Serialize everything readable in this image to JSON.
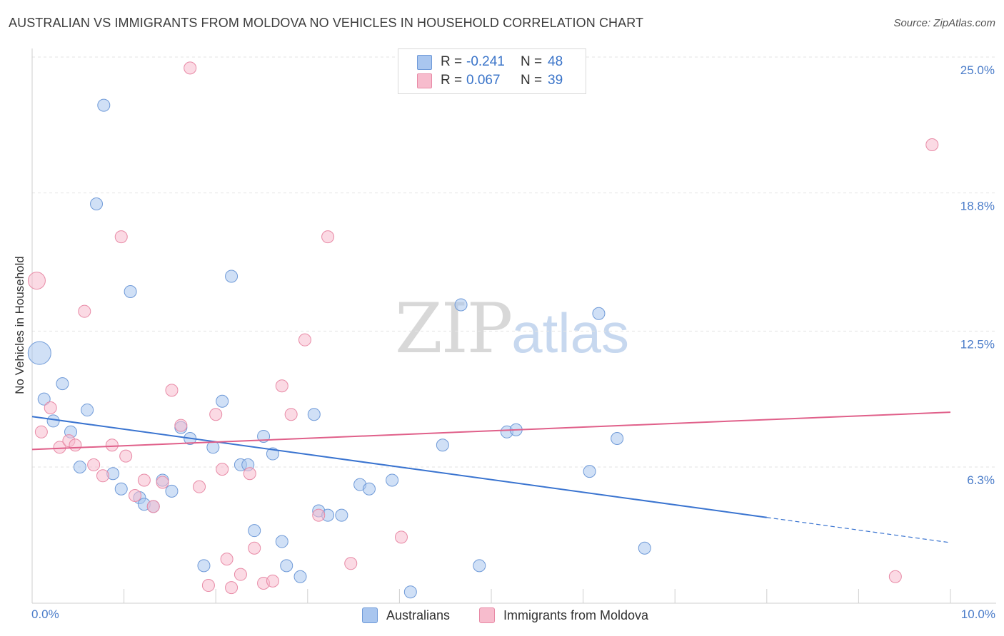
{
  "header": {
    "title": "AUSTRALIAN VS IMMIGRANTS FROM MOLDOVA NO VEHICLES IN HOUSEHOLD CORRELATION CHART",
    "source": "Source: ZipAtlas.com"
  },
  "watermark": {
    "zip": "ZIP",
    "atlas": "atlas"
  },
  "legend": {
    "rows": [
      {
        "r_label": "R =",
        "r_value": "-0.241",
        "n_label": "N =",
        "n_value": "48",
        "color": "#a9c6ef",
        "border": "#6f9ad8"
      },
      {
        "r_label": "R =",
        "r_value": "0.067",
        "n_label": "N =",
        "n_value": "39",
        "color": "#f7bccd",
        "border": "#e88aa6"
      }
    ]
  },
  "bottom_legend": {
    "items": [
      {
        "label": "Australians",
        "color": "#a9c6ef",
        "border": "#6f9ad8"
      },
      {
        "label": "Immigrants from Moldova",
        "color": "#f7bccd",
        "border": "#e88aa6"
      }
    ]
  },
  "chart_data": {
    "type": "scatter",
    "title": "AUSTRALIAN VS IMMIGRANTS FROM MOLDOVA NO VEHICLES IN HOUSEHOLD CORRELATION CHART",
    "xlabel": "",
    "ylabel": "No Vehicles in Household",
    "xlim": [
      0,
      10
    ],
    "ylim": [
      0,
      26
    ],
    "x_tick_labels": [
      "0.0%",
      "10.0%"
    ],
    "y_ticks": [
      6.3,
      12.5,
      18.8,
      25.0
    ],
    "y_tick_labels": [
      "6.3%",
      "12.5%",
      "18.8%",
      "25.0%"
    ],
    "grid": "horizontal dashed",
    "legend_placement": "top-center",
    "series": [
      {
        "name": "Australians",
        "color": "#a9c6ef",
        "stroke": "#6f9ad8",
        "line_color": "#3a74d0",
        "trend": {
          "x0": 0.0,
          "y0": 8.6,
          "x1": 8.0,
          "y1": 4.0,
          "dash_to_x": 10.0,
          "dash_to_y": 2.85
        },
        "points": [
          {
            "x": 0.08,
            "y": 11.5,
            "r": 16
          },
          {
            "x": 0.13,
            "y": 9.4
          },
          {
            "x": 0.23,
            "y": 8.4
          },
          {
            "x": 0.33,
            "y": 10.1
          },
          {
            "x": 0.42,
            "y": 7.9
          },
          {
            "x": 0.52,
            "y": 6.3
          },
          {
            "x": 0.6,
            "y": 8.9
          },
          {
            "x": 0.7,
            "y": 18.3
          },
          {
            "x": 0.78,
            "y": 22.8
          },
          {
            "x": 0.88,
            "y": 6.0
          },
          {
            "x": 0.97,
            "y": 5.3
          },
          {
            "x": 1.07,
            "y": 14.3
          },
          {
            "x": 1.17,
            "y": 4.9
          },
          {
            "x": 1.22,
            "y": 4.6
          },
          {
            "x": 1.32,
            "y": 4.5
          },
          {
            "x": 1.42,
            "y": 5.7
          },
          {
            "x": 1.52,
            "y": 5.2
          },
          {
            "x": 1.62,
            "y": 8.1
          },
          {
            "x": 1.72,
            "y": 7.6
          },
          {
            "x": 1.87,
            "y": 1.8
          },
          {
            "x": 1.97,
            "y": 7.2
          },
          {
            "x": 2.07,
            "y": 9.3
          },
          {
            "x": 2.17,
            "y": 15.0
          },
          {
            "x": 2.27,
            "y": 6.4
          },
          {
            "x": 2.35,
            "y": 6.4
          },
          {
            "x": 2.42,
            "y": 3.4
          },
          {
            "x": 2.52,
            "y": 7.7
          },
          {
            "x": 2.62,
            "y": 6.9
          },
          {
            "x": 2.72,
            "y": 2.9
          },
          {
            "x": 2.77,
            "y": 1.8
          },
          {
            "x": 2.92,
            "y": 1.3
          },
          {
            "x": 3.07,
            "y": 8.7
          },
          {
            "x": 3.12,
            "y": 4.3
          },
          {
            "x": 3.22,
            "y": 4.1
          },
          {
            "x": 3.37,
            "y": 4.1
          },
          {
            "x": 3.57,
            "y": 5.5
          },
          {
            "x": 3.67,
            "y": 5.3
          },
          {
            "x": 3.92,
            "y": 5.7
          },
          {
            "x": 4.12,
            "y": 0.6
          },
          {
            "x": 4.47,
            "y": 7.3
          },
          {
            "x": 4.67,
            "y": 13.7
          },
          {
            "x": 4.87,
            "y": 1.8
          },
          {
            "x": 5.17,
            "y": 7.9
          },
          {
            "x": 5.27,
            "y": 8.0
          },
          {
            "x": 6.07,
            "y": 6.1
          },
          {
            "x": 6.17,
            "y": 13.3
          },
          {
            "x": 6.37,
            "y": 7.6
          },
          {
            "x": 6.67,
            "y": 2.6
          }
        ]
      },
      {
        "name": "Immigrants from Moldova",
        "color": "#f7bccd",
        "stroke": "#e88aa6",
        "line_color": "#e0608a",
        "trend": {
          "x0": 0.0,
          "y0": 7.1,
          "x1": 10.0,
          "y1": 8.8
        },
        "points": [
          {
            "x": 0.05,
            "y": 14.8,
            "r": 12
          },
          {
            "x": 0.1,
            "y": 7.9
          },
          {
            "x": 0.2,
            "y": 9.0
          },
          {
            "x": 0.3,
            "y": 7.2
          },
          {
            "x": 0.4,
            "y": 7.5
          },
          {
            "x": 0.47,
            "y": 7.3
          },
          {
            "x": 0.57,
            "y": 13.4
          },
          {
            "x": 0.67,
            "y": 6.4
          },
          {
            "x": 0.77,
            "y": 5.9
          },
          {
            "x": 0.87,
            "y": 7.3
          },
          {
            "x": 0.97,
            "y": 16.8
          },
          {
            "x": 1.02,
            "y": 6.8
          },
          {
            "x": 1.12,
            "y": 5.0
          },
          {
            "x": 1.22,
            "y": 5.7
          },
          {
            "x": 1.32,
            "y": 4.5
          },
          {
            "x": 1.42,
            "y": 5.6
          },
          {
            "x": 1.52,
            "y": 9.8
          },
          {
            "x": 1.62,
            "y": 8.2
          },
          {
            "x": 1.72,
            "y": 24.5
          },
          {
            "x": 1.82,
            "y": 5.4
          },
          {
            "x": 1.92,
            "y": 0.9
          },
          {
            "x": 2.0,
            "y": 8.7
          },
          {
            "x": 2.07,
            "y": 6.2
          },
          {
            "x": 2.12,
            "y": 2.1
          },
          {
            "x": 2.17,
            "y": 0.8
          },
          {
            "x": 2.27,
            "y": 1.4
          },
          {
            "x": 2.37,
            "y": 6.0
          },
          {
            "x": 2.42,
            "y": 2.6
          },
          {
            "x": 2.52,
            "y": 1.0
          },
          {
            "x": 2.62,
            "y": 1.1
          },
          {
            "x": 2.72,
            "y": 10.0
          },
          {
            "x": 2.82,
            "y": 8.7
          },
          {
            "x": 2.97,
            "y": 12.1
          },
          {
            "x": 3.12,
            "y": 4.1
          },
          {
            "x": 3.22,
            "y": 16.8
          },
          {
            "x": 3.47,
            "y": 1.9
          },
          {
            "x": 4.02,
            "y": 3.1
          },
          {
            "x": 9.4,
            "y": 1.3
          },
          {
            "x": 9.8,
            "y": 21.0
          }
        ]
      }
    ]
  }
}
